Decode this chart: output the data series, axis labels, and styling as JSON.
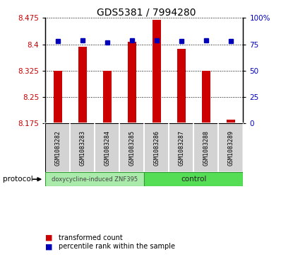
{
  "title": "GDS5381 / 7994280",
  "samples": [
    "GSM1083282",
    "GSM1083283",
    "GSM1083284",
    "GSM1083285",
    "GSM1083286",
    "GSM1083287",
    "GSM1083288",
    "GSM1083289"
  ],
  "transformed_counts": [
    8.325,
    8.393,
    8.325,
    8.407,
    8.47,
    8.388,
    8.325,
    8.185
  ],
  "percentile_ranks": [
    78,
    79,
    77,
    79,
    79,
    78,
    79,
    78
  ],
  "ylim_left": [
    8.175,
    8.475
  ],
  "ylim_right": [
    0,
    100
  ],
  "yticks_left": [
    8.175,
    8.25,
    8.325,
    8.4,
    8.475
  ],
  "yticks_right": [
    0,
    25,
    50,
    75,
    100
  ],
  "bar_color": "#cc0000",
  "dot_color": "#0000bb",
  "bg_color": "#ffffff",
  "protocol_groups": [
    {
      "label": "doxycycline-induced ZNF395",
      "start": 0,
      "end": 3,
      "color": "#aaeaaa"
    },
    {
      "label": "control",
      "start": 4,
      "end": 7,
      "color": "#55dd55"
    }
  ],
  "legend_items": [
    {
      "color": "#cc0000",
      "label": "transformed count"
    },
    {
      "color": "#0000bb",
      "label": "percentile rank within the sample"
    }
  ],
  "protocol_label": "protocol",
  "left_axis_color": "#cc0000",
  "right_axis_color": "#0000bb",
  "bar_width": 0.35,
  "dot_size": 5
}
